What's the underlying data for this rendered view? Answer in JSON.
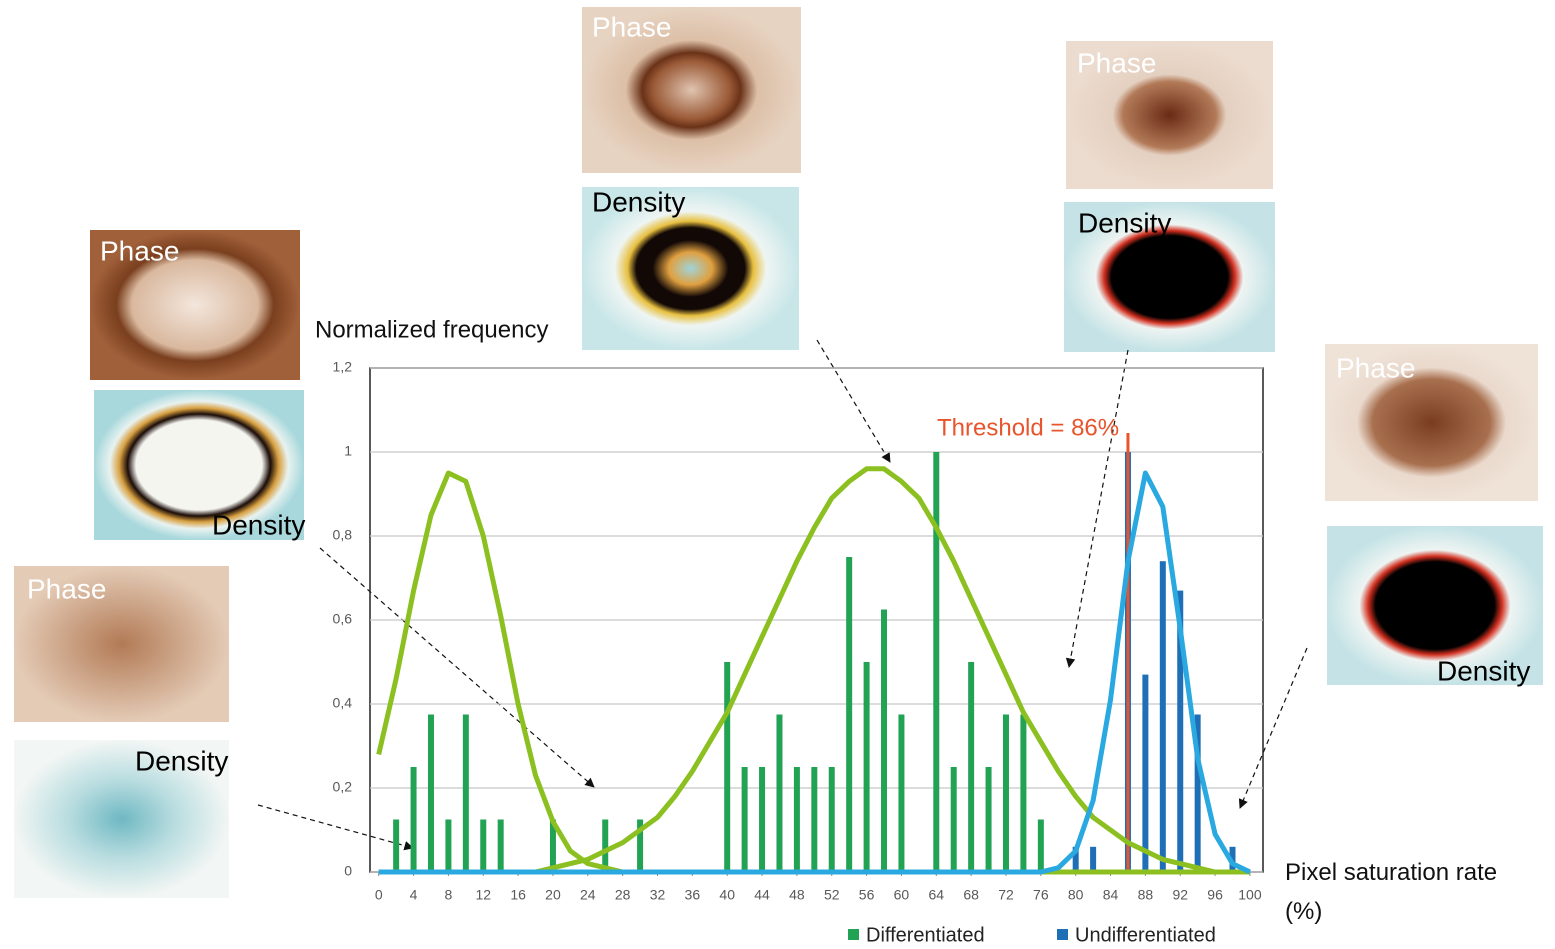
{
  "chart_data": {
    "type": "bar",
    "y_label": "Normalized frequency",
    "x_label": "Pixel saturation rate (%)",
    "xlim": [
      -1,
      101.5
    ],
    "xticks": [
      0,
      4,
      8,
      12,
      16,
      20,
      24,
      28,
      32,
      36,
      40,
      44,
      48,
      52,
      56,
      60,
      64,
      68,
      72,
      76,
      80,
      84,
      88,
      92,
      96,
      100
    ],
    "ylim": [
      0,
      1.2
    ],
    "yticks": [
      {
        "value": 0,
        "label": "0"
      },
      {
        "value": 0.2,
        "label": "0,2"
      },
      {
        "value": 0.4,
        "label": "0,4"
      },
      {
        "value": 0.6,
        "label": "0,6"
      },
      {
        "value": 0.8,
        "label": "0,8"
      },
      {
        "value": 1,
        "label": "1"
      },
      {
        "value": 1.2,
        "label": "1,2"
      }
    ],
    "grid": true,
    "series": [
      {
        "name": "Differentiated",
        "color": "#22a354",
        "x": [
          2,
          4,
          6,
          8,
          10,
          12,
          14,
          20,
          26,
          30,
          40,
          42,
          44,
          46,
          48,
          50,
          52,
          54,
          56,
          58,
          60,
          64,
          66,
          68,
          70,
          72,
          74,
          76
        ],
        "values": [
          0.125,
          0.25,
          0.375,
          0.125,
          0.375,
          0.125,
          0.125,
          0.125,
          0.125,
          0.125,
          0.5,
          0.25,
          0.25,
          0.375,
          0.25,
          0.25,
          0.25,
          0.75,
          0.5,
          0.625,
          0.375,
          1,
          0.25,
          0.5,
          0.25,
          0.375,
          0.375,
          0.125
        ]
      },
      {
        "name": "Undifferentiated",
        "color": "#1f6fb6",
        "x": [
          80,
          82,
          86,
          88,
          90,
          92,
          94,
          98
        ],
        "values": [
          0.06,
          0.06,
          1,
          0.47,
          0.74,
          0.67,
          0.375,
          0.06
        ]
      }
    ],
    "curve_x": [
      0,
      2,
      4,
      6,
      8,
      10,
      12,
      14,
      16,
      18,
      20,
      22,
      24,
      26,
      28,
      30,
      32,
      34,
      36,
      38,
      40,
      42,
      44,
      46,
      48,
      50,
      52,
      54,
      56,
      58,
      60,
      62,
      64,
      66,
      68,
      70,
      72,
      74,
      76,
      78,
      80,
      82,
      84,
      86,
      88,
      90,
      92,
      94,
      96,
      98,
      100
    ],
    "curves": [
      {
        "color": "#8cc021",
        "values": [
          0.28,
          0.46,
          0.67,
          0.85,
          0.95,
          0.93,
          0.8,
          0.61,
          0.4,
          0.23,
          0.12,
          0.05,
          0.02,
          0.01,
          0,
          0,
          0,
          0,
          0,
          0,
          0,
          0,
          0,
          0,
          0,
          0,
          0,
          0,
          0,
          0,
          0,
          0,
          0,
          0,
          0,
          0,
          0,
          0,
          0,
          0,
          0,
          0,
          0,
          0,
          0,
          0,
          0,
          0,
          0,
          0,
          0
        ]
      },
      {
        "color": "#8cc021",
        "values": [
          0,
          0,
          0,
          0,
          0,
          0,
          0,
          0,
          0,
          0,
          0.01,
          0.02,
          0.03,
          0.05,
          0.07,
          0.1,
          0.13,
          0.18,
          0.24,
          0.31,
          0.38,
          0.47,
          0.56,
          0.65,
          0.74,
          0.82,
          0.89,
          0.93,
          0.96,
          0.96,
          0.93,
          0.89,
          0.82,
          0.74,
          0.65,
          0.56,
          0.47,
          0.38,
          0.31,
          0.24,
          0.18,
          0.13,
          0.1,
          0.07,
          0.05,
          0.03,
          0.02,
          0.01,
          0,
          0,
          0
        ]
      },
      {
        "color": "#2aa8e0",
        "values": [
          0,
          0,
          0,
          0,
          0,
          0,
          0,
          0,
          0,
          0,
          0,
          0,
          0,
          0,
          0,
          0,
          0,
          0,
          0,
          0,
          0,
          0,
          0,
          0,
          0,
          0,
          0,
          0,
          0,
          0,
          0,
          0,
          0,
          0,
          0,
          0,
          0,
          0,
          0,
          0.01,
          0.05,
          0.17,
          0.41,
          0.74,
          0.95,
          0.87,
          0.58,
          0.27,
          0.09,
          0.02,
          0
        ]
      }
    ],
    "threshold": {
      "value": 86,
      "label": "Threshold = 86%",
      "color": "#e8542c"
    }
  },
  "micrographs": [
    {
      "phase_label": "Phase",
      "density_label": "Density"
    },
    {
      "phase_label": "Phase",
      "density_label": "Density"
    },
    {
      "phase_label": "Phase",
      "density_label": "Density"
    },
    {
      "phase_label": "Phase",
      "density_label": "Density"
    },
    {
      "phase_label": "Phase",
      "density_label": "Density"
    }
  ]
}
